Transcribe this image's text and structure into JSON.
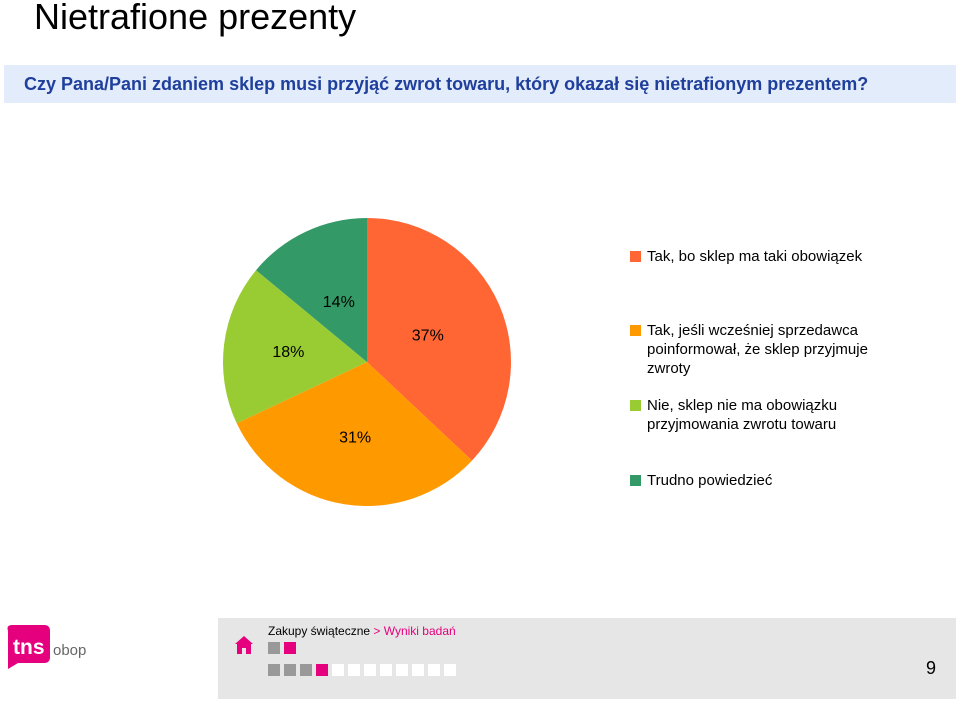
{
  "page": {
    "title": "Nietrafione prezenty"
  },
  "question": {
    "text": "Czy Pana/Pani zdaniem sklep musi przyjąć zwrot towaru, który okazał się nietrafionym prezentem?"
  },
  "chart_data": {
    "type": "pie",
    "categories": [
      "Tak, bo sklep ma taki obowiązek",
      "Tak, jeśli wcześniej sprzedawca poinformował, że sklep przyjmuje zwroty",
      "Nie, sklep nie ma obowiązku przyjmowania zwrotu towaru",
      "Trudno powiedzieć"
    ],
    "values": [
      37,
      31,
      18,
      14
    ],
    "data_labels": [
      "37%",
      "31%",
      "18%",
      "14%"
    ],
    "colors": [
      "#ff6633",
      "#ff9900",
      "#99cc33",
      "#339966"
    ],
    "start_angle_deg": 0,
    "direction": "clockwise",
    "legend_position": "right"
  },
  "footer": {
    "breadcrumb_section": "Zakupy świąteczne",
    "breadcrumb_separator": ">",
    "breadcrumb_current": "Wyniki badań",
    "page_number": "9",
    "logo_text_main": "tns",
    "logo_text_sub": "obop",
    "accent_color": "#e5007d"
  }
}
